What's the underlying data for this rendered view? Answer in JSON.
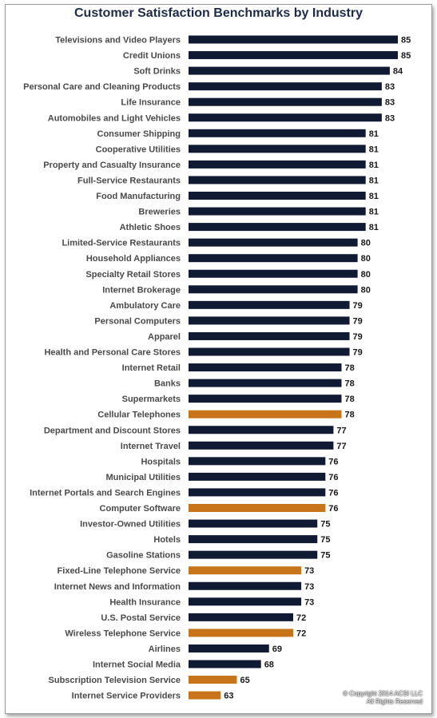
{
  "chart_data": {
    "type": "bar",
    "orientation": "horizontal",
    "title": "Customer Satisfaction Benchmarks by Industry",
    "categories": [
      "Televisions and Video Players",
      "Credit Unions",
      "Soft Drinks",
      "Personal Care and Cleaning Products",
      "Life Insurance",
      "Automobiles and Light Vehicles",
      "Consumer Shipping",
      "Cooperative Utilities",
      "Property and Casualty Insurance",
      "Full-Service Restaurants",
      "Food Manufacturing",
      "Breweries",
      "Athletic Shoes",
      "Limited-Service Restaurants",
      "Household Appliances",
      "Specialty Retail Stores",
      "Internet Brokerage",
      "Ambulatory Care",
      "Personal Computers",
      "Apparel",
      "Health and Personal Care Stores",
      "Internet Retail",
      "Banks",
      "Supermarkets",
      "Cellular Telephones",
      "Department and Discount Stores",
      "Internet Travel",
      "Hospitals",
      "Municipal Utilities",
      "Internet Portals and Search Engines",
      "Computer Software",
      "Investor-Owned Utilities",
      "Hotels",
      "Gasoline Stations",
      "Fixed-Line Telephone Service",
      "Internet News and Information",
      "Health Insurance",
      "U.S. Postal Service",
      "Wireless Telephone Service",
      "Airlines",
      "Internet Social Media",
      "Subscription Television Service",
      "Internet Service Providers"
    ],
    "values": [
      85,
      85,
      84,
      83,
      83,
      83,
      81,
      81,
      81,
      81,
      81,
      81,
      81,
      80,
      80,
      80,
      80,
      79,
      79,
      79,
      79,
      78,
      78,
      78,
      78,
      77,
      77,
      76,
      76,
      76,
      76,
      75,
      75,
      75,
      73,
      73,
      73,
      72,
      72,
      69,
      68,
      65,
      63
    ],
    "highlighted": [
      "Cellular Telephones",
      "Computer Software",
      "Fixed-Line Telephone Service",
      "Wireless Telephone Service",
      "Subscription Television Service",
      "Internet Service Providers"
    ],
    "colors": {
      "default": "#111a33",
      "highlight": "#c8741a"
    },
    "xlim": [
      59,
      85
    ],
    "grid": false,
    "legend": "none"
  },
  "copyright": {
    "line1": "© Copyright 2014 ACSI LLC",
    "line2": "All Rights Reserved"
  }
}
